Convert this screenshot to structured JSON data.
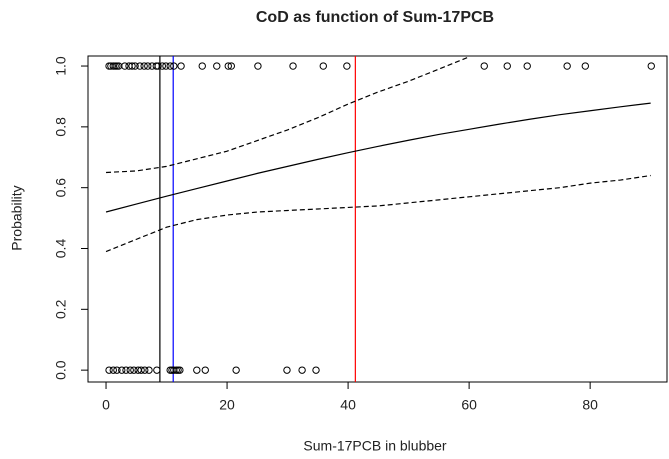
{
  "chart_data": {
    "type": "scatter",
    "title": "CoD as function of Sum-17PCB",
    "x_label": "Sum-17PCB in blubber",
    "y_label": "Probability",
    "xlim": [
      -2.98,
      92.7
    ],
    "ylim": [
      -0.039,
      1.033
    ],
    "xticks": [
      0,
      20,
      40,
      60,
      80
    ],
    "yticks": [
      {
        "value": 0,
        "label": "0.0"
      },
      0.2,
      0.4,
      0.6,
      0.8,
      {
        "value": 1,
        "label": "1.0"
      }
    ],
    "points": {
      "x": [
        0.5,
        0.8,
        1.2,
        1.5,
        1.8,
        2.1,
        3.1,
        3.8,
        4.3,
        4.8,
        5.6,
        6.3,
        6.9,
        7.6,
        8.3,
        8.6,
        9.3,
        9.9,
        10.6,
        11.2,
        12.4,
        15.9,
        18.3,
        20.2,
        20.7,
        25.1,
        30.9,
        35.9,
        39.8,
        62.5,
        66.3,
        69.6,
        76.2,
        79.2,
        90.1,
        0.5,
        1.2,
        1.8,
        2.6,
        3.3,
        4.0,
        4.6,
        5.3,
        5.8,
        6.4,
        7.1,
        8.4,
        10.6,
        10.9,
        11.2,
        11.6,
        11.9,
        12.2,
        15.0,
        16.4,
        21.5,
        29.9,
        32.4,
        34.7
      ],
      "y": [
        1,
        1,
        1,
        1,
        1,
        1,
        1,
        1,
        1,
        1,
        1,
        1,
        1,
        1,
        1,
        1,
        1,
        1,
        1,
        1,
        1,
        1,
        1,
        1,
        1,
        1,
        1,
        1,
        1,
        1,
        1,
        1,
        1,
        1,
        1,
        0,
        0,
        0,
        0,
        0,
        0,
        0,
        0,
        0,
        0,
        0,
        0,
        0,
        0,
        0,
        0,
        0,
        0,
        0,
        0,
        0,
        0,
        0,
        0
      ]
    },
    "lines": [
      {
        "dash": false,
        "x": [
          0,
          5,
          10,
          15,
          20,
          25,
          30,
          35,
          40,
          45,
          50,
          55,
          60,
          65,
          70,
          75,
          80,
          85,
          90
        ],
        "values": [
          0.52,
          0.546,
          0.572,
          0.597,
          0.622,
          0.647,
          0.67,
          0.693,
          0.715,
          0.736,
          0.756,
          0.775,
          0.792,
          0.809,
          0.825,
          0.84,
          0.853,
          0.866,
          0.878
        ]
      },
      {
        "dash": true,
        "x": [
          0,
          5,
          10,
          15,
          20,
          25,
          30,
          35,
          40,
          45,
          50,
          55,
          60,
          65,
          70,
          75,
          80,
          85,
          90
        ],
        "values": [
          0.65,
          0.655,
          0.67,
          0.695,
          0.72,
          0.755,
          0.79,
          0.83,
          0.875,
          0.915,
          0.95,
          0.99,
          1.03,
          null,
          null,
          null,
          null,
          null,
          null
        ]
      },
      {
        "dash": true,
        "x": [
          0,
          5,
          10,
          15,
          20,
          25,
          30,
          35,
          40,
          45,
          50,
          55,
          60,
          65,
          70,
          75,
          80,
          85,
          90
        ],
        "values": [
          0.39,
          0.43,
          0.47,
          0.495,
          0.51,
          0.52,
          0.525,
          0.53,
          0.535,
          0.54,
          0.55,
          0.56,
          0.57,
          0.58,
          0.59,
          0.6,
          0.615,
          0.625,
          0.64
        ]
      }
    ],
    "vlines": [
      {
        "x": 8.9,
        "color": "#000000"
      },
      {
        "x": 11.1,
        "color": "#0000ff"
      },
      {
        "x": 41.2,
        "color": "#ff0000"
      }
    ]
  }
}
